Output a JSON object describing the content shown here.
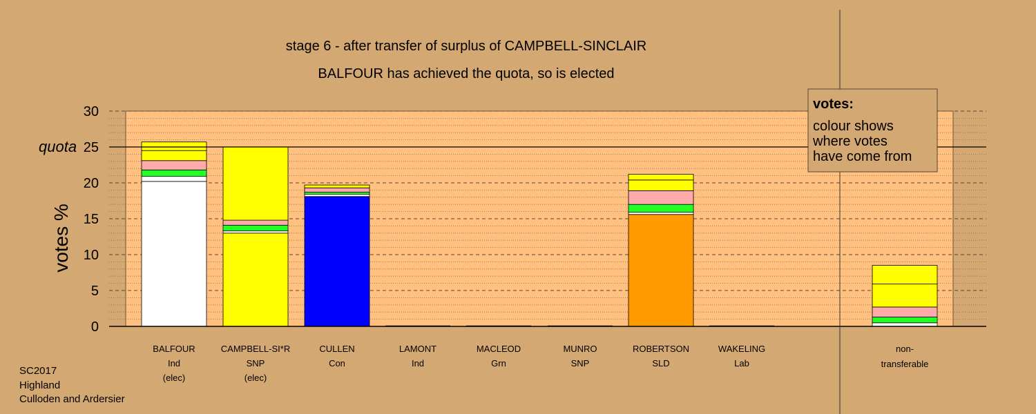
{
  "chart_data": {
    "type": "bar",
    "stacked": true,
    "title": "stage 6 - after transfer of surplus of CAMPBELL-SINCLAIR",
    "subtitle": "BALFOUR has achieved the quota, so is elected",
    "ylabel": "votes %",
    "ylim": [
      0,
      30
    ],
    "yticks": [
      "0",
      "5",
      "10",
      "15",
      "20",
      "25",
      "30"
    ],
    "quota": 25,
    "quota_label": "quota",
    "grid": true,
    "colors": {
      "Ind": "#ffffff",
      "Grn": "#22ff22",
      "Lab": "#ffaaaa",
      "SNP": "#ffff00",
      "Con": "#0000ff",
      "SLD": "#ff9900"
    },
    "categories": [
      {
        "name": "BALFOUR",
        "party": "Ind",
        "note": "(elec)"
      },
      {
        "name": "CAMPBELL-SI*R",
        "party": "SNP",
        "note": "(elec)"
      },
      {
        "name": "CULLEN",
        "party": "Con",
        "note": ""
      },
      {
        "name": "LAMONT",
        "party": "Ind",
        "note": ""
      },
      {
        "name": "MACLEOD",
        "party": "Grn",
        "note": ""
      },
      {
        "name": "MUNRO",
        "party": "SNP",
        "note": ""
      },
      {
        "name": "ROBERTSON",
        "party": "SLD",
        "note": ""
      },
      {
        "name": "WAKELING",
        "party": "Lab",
        "note": ""
      }
    ],
    "nontransferable_label": [
      "non-",
      "transferable"
    ],
    "stacks": [
      [
        {
          "value": 20.2,
          "party": "Ind"
        },
        {
          "value": 0.7,
          "party": "Ind"
        },
        {
          "value": 0.9,
          "party": "Grn"
        },
        {
          "value": 1.3,
          "party": "Lab"
        },
        {
          "value": 1.4,
          "party": "SNP"
        },
        {
          "value": 1.2,
          "party": "SNP"
        }
      ],
      [
        {
          "value": 13.0,
          "party": "SNP"
        },
        {
          "value": 0.3,
          "party": "Ind"
        },
        {
          "value": 0.8,
          "party": "Grn"
        },
        {
          "value": 0.7,
          "party": "Lab"
        },
        {
          "value": 10.2,
          "party": "SNP"
        }
      ],
      [
        {
          "value": 18.1,
          "party": "Con"
        },
        {
          "value": 0.3,
          "party": "Ind"
        },
        {
          "value": 0.3,
          "party": "Grn"
        },
        {
          "value": 0.6,
          "party": "Lab"
        },
        {
          "value": 0.4,
          "party": "SNP"
        }
      ],
      [],
      [],
      [],
      [
        {
          "value": 15.6,
          "party": "SLD"
        },
        {
          "value": 0.3,
          "party": "Ind"
        },
        {
          "value": 1.1,
          "party": "Grn"
        },
        {
          "value": 1.9,
          "party": "Lab"
        },
        {
          "value": 1.5,
          "party": "SNP"
        },
        {
          "value": 0.8,
          "party": "SNP"
        }
      ],
      []
    ],
    "nontransferable": [
      {
        "value": 0.5,
        "party": "Ind"
      },
      {
        "value": 0.8,
        "party": "Grn"
      },
      {
        "value": 1.4,
        "party": "Lab"
      },
      {
        "value": 3.2,
        "party": "SNP"
      },
      {
        "value": 2.6,
        "party": "SNP"
      }
    ],
    "legend": {
      "title": "votes:",
      "lines": [
        "colour shows",
        "where votes",
        "have come from"
      ],
      "position": "top-right"
    }
  },
  "footer": {
    "election": "SC2017",
    "council": "Highland",
    "ward": "Culloden and Ardersier"
  }
}
